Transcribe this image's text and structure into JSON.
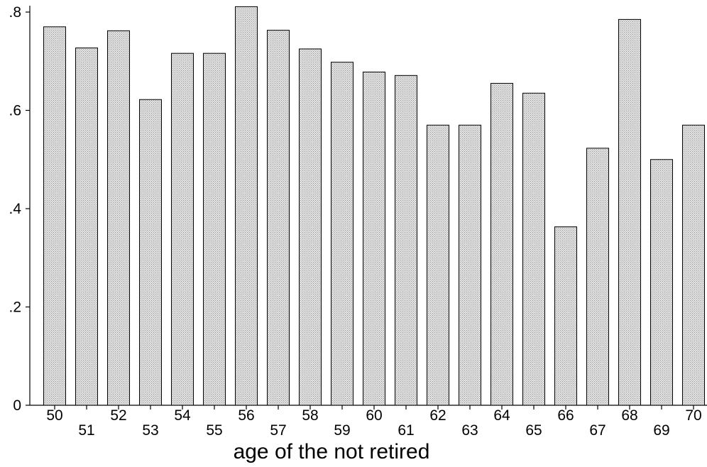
{
  "chart_data": {
    "type": "bar",
    "title": "",
    "xlabel": "age of the not retired",
    "ylabel": "",
    "categories": [
      "50",
      "51",
      "52",
      "53",
      "54",
      "55",
      "56",
      "57",
      "58",
      "59",
      "60",
      "61",
      "62",
      "63",
      "64",
      "65",
      "66",
      "67",
      "68",
      "69",
      "70"
    ],
    "values": [
      0.77,
      0.727,
      0.762,
      0.622,
      0.716,
      0.716,
      0.811,
      0.763,
      0.725,
      0.698,
      0.678,
      0.671,
      0.57,
      0.57,
      0.655,
      0.635,
      0.363,
      0.523,
      0.785,
      0.5,
      0.57
    ],
    "ylim": [
      0,
      0.8
    ],
    "yticks": [
      0,
      0.2,
      0.4,
      0.6,
      0.8
    ],
    "ytick_labels": [
      "0",
      ".2",
      ".4",
      ".6",
      ".8"
    ],
    "grid": false,
    "bar_fill": "#d4d4d4",
    "bar_stroke": "#000000",
    "axis_color": "#000000"
  }
}
